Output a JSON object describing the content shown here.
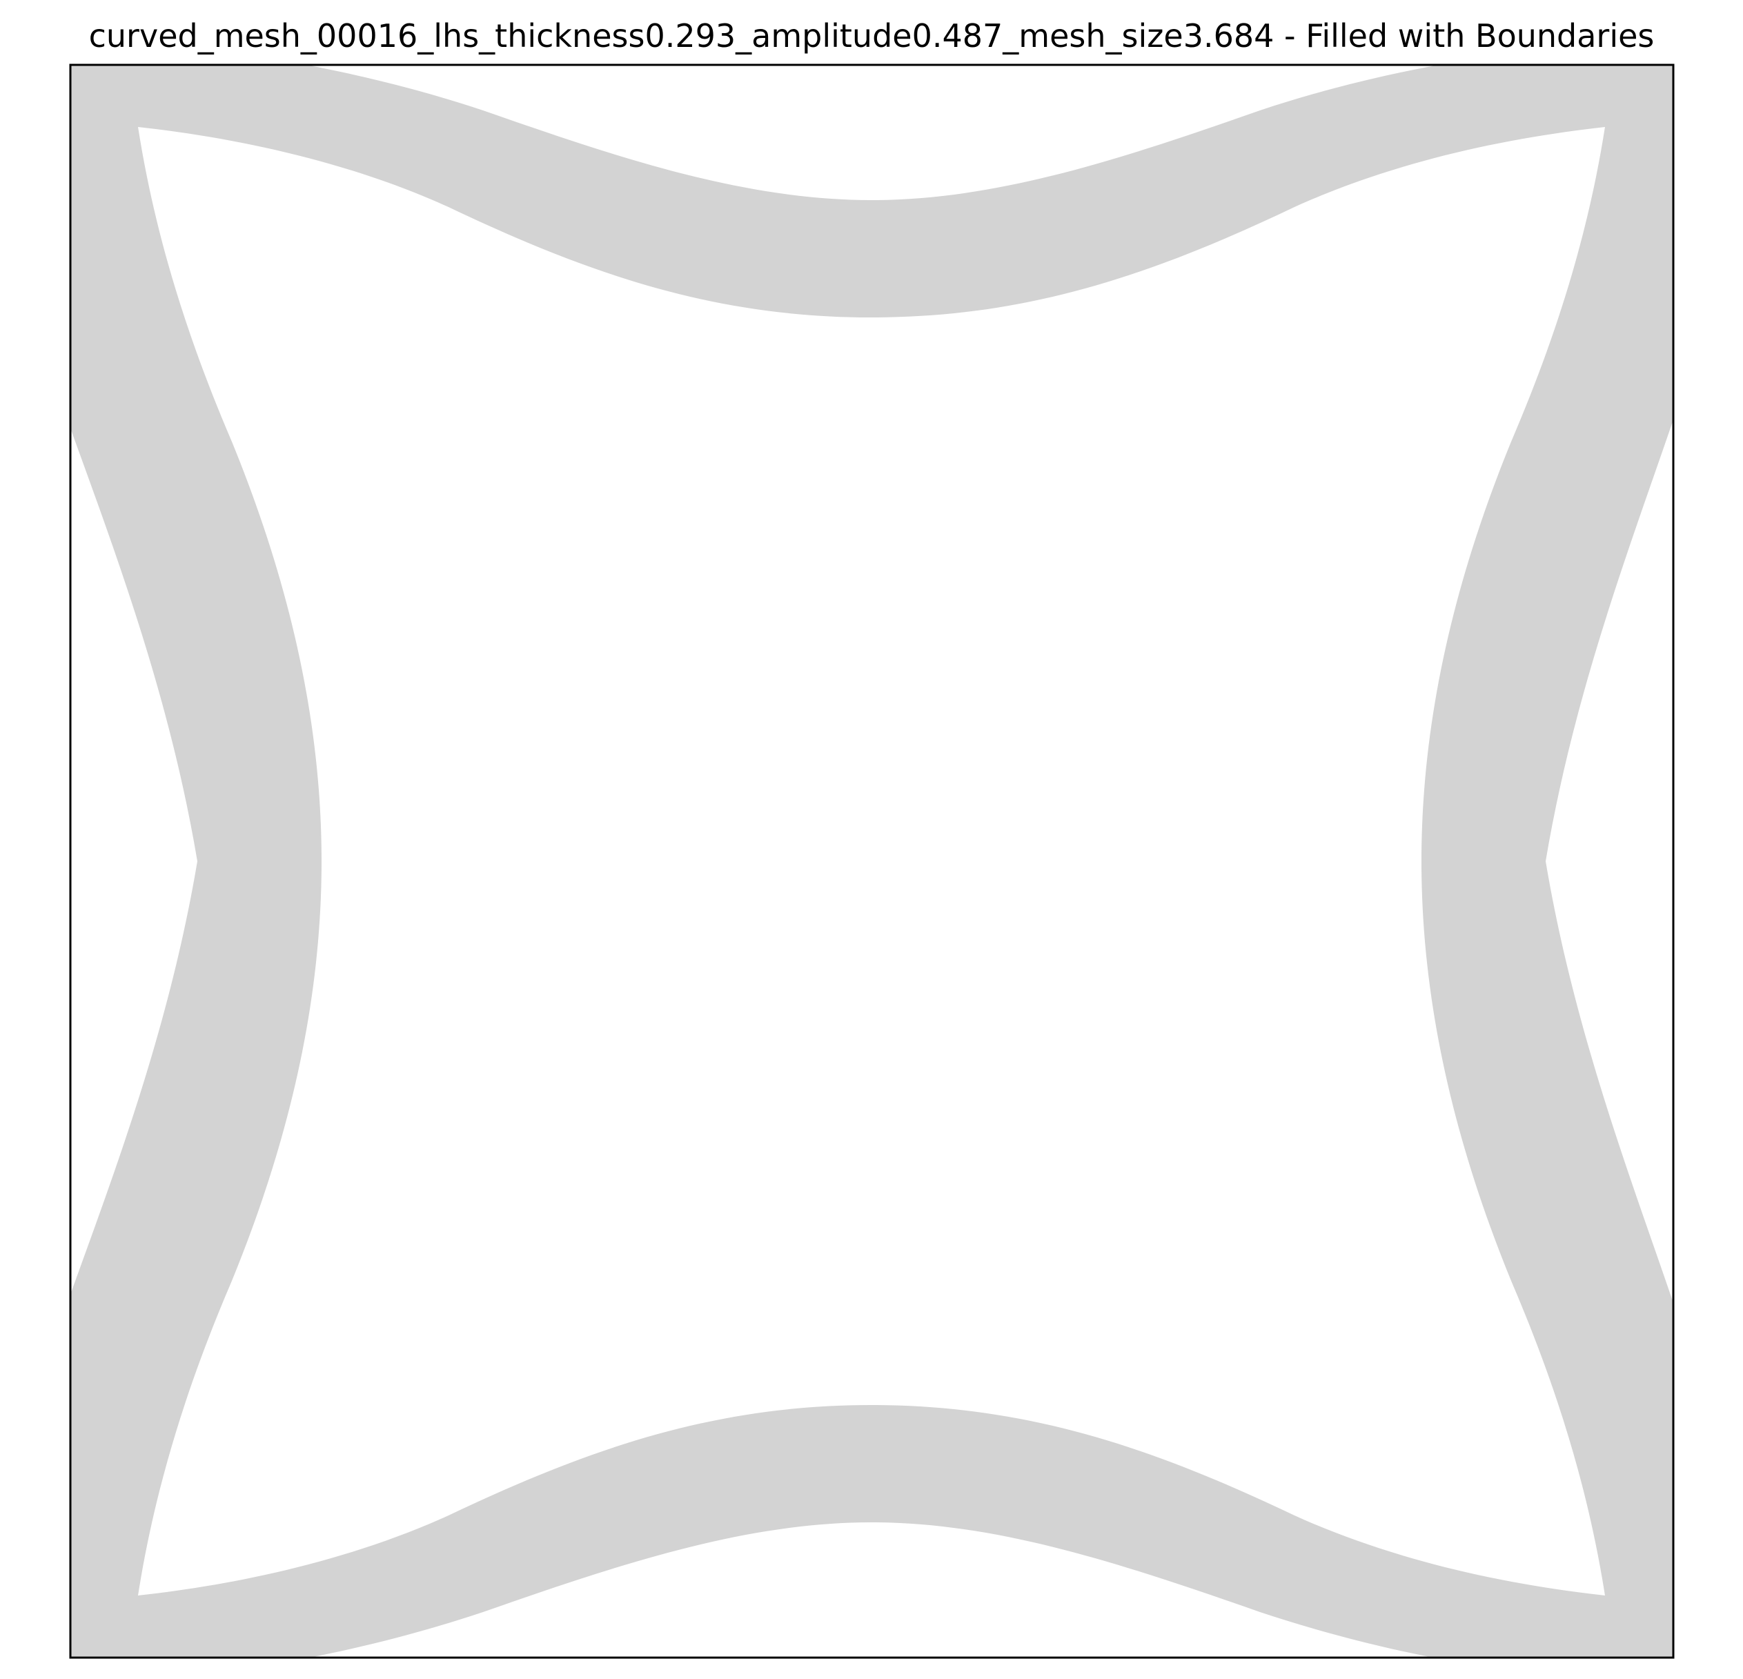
{
  "figure": {
    "title": "curved_mesh_00016_lhs_thickness0.293_amplitude0.487_mesh_size3.684 - Filled with Boundaries"
  },
  "colors": {
    "fill": "#d3d3d3",
    "background": "#ffffff",
    "frame": "#000000"
  }
}
